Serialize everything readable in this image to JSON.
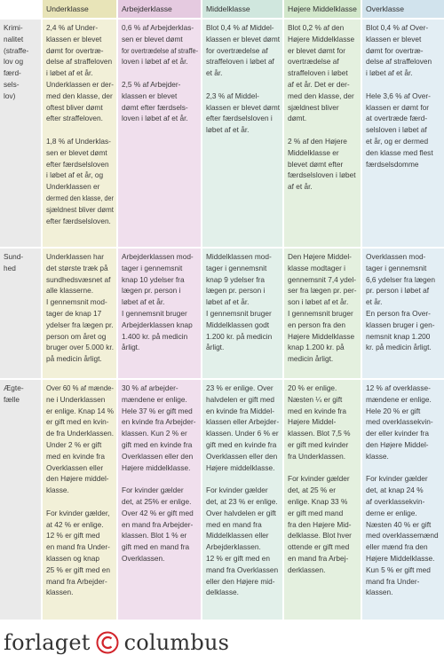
{
  "table": {
    "header": [
      "Underklasse",
      "Arbejderklasse",
      "Middelklasse",
      "Højere Middelklasse",
      "Overklasse"
    ],
    "rows": [
      {
        "label": [
          "Krimi-",
          "nalitet",
          "(straffe-",
          "lov og",
          "færd-",
          "sels-",
          "lov)"
        ],
        "cells": [
          [
            [
              "2,4 % af Under-",
              "klassen er blevet",
              "dømt for overtræ-",
              "delse af straffeloven",
              "i løbet af et år.",
              "Underklassen er der-",
              "med den klasse, der",
              "oftest bliver dømt",
              "efter straffeloven."
            ],
            [
              "1,8 % af Underklas-",
              "sen er blevet dømt",
              "efter færdselsloven",
              "i løbet af et år, og",
              "Underklassen er",
              "dermed den klasse, der",
              "sjældnest bliver dømt",
              "efter færdselsloven."
            ]
          ],
          [
            [
              "0,6 % af Arbejderklas-",
              "sen er blevet dømt",
              "for overtrædelse af straffe-",
              "loven i løbet af et år."
            ],
            [
              "2,5 % af Arbejder-",
              "klassen er blevet",
              "dømt efter færdsels-",
              "loven i løbet af et år."
            ]
          ],
          [
            [
              "Blot 0,4 % af Middel-",
              "klassen er blevet dømt",
              "for overtrædelse af",
              "straffeloven i løbet af",
              "et år."
            ],
            [
              "2,3 % af Middel-",
              "klassen er blevet dømt",
              "efter færdselsloven i",
              "løbet af et år."
            ]
          ],
          [
            [
              "Blot 0,2 % af den",
              "Højere Middelklasse",
              "er blevet dømt for",
              "overtrædelse af",
              "straffeloven i løbet",
              "af et år. Det er der-",
              "med den klasse, der",
              "sjældnest bliver",
              "dømt."
            ],
            [
              "2 % af den Højere",
              "Middelklasse er",
              "blevet dømt efter",
              "færdselsloven i løbet",
              "af et år."
            ]
          ],
          [
            [
              "Blot 0,4 % af Over-",
              "klassen er blevet",
              "dømt for overtræ-",
              "delse af straffeloven",
              "i løbet af et år."
            ],
            [
              "Hele 3,6 % af Over-",
              "klassen er dømt for",
              "at overtræde færd-",
              "selsloven i løbet af",
              "et år, og er dermed",
              "den klasse med flest",
              "færdselsdomme"
            ]
          ]
        ]
      },
      {
        "label": [
          "Sund-",
          "hed"
        ],
        "cells": [
          [
            [
              "Underklassen har",
              "det største træk på",
              "sundhedsvæsnet af",
              "alle klasserne.",
              "I gennemsnit mod-",
              "tager de knap 17",
              "ydelser fra lægen pr.",
              "person om året og",
              "bruger over 5.000 kr.",
              "på medicin årligt."
            ]
          ],
          [
            [
              "Arbejderklassen mod-",
              "tager i gennemsnit",
              "knap 10 ydelser fra",
              "lægen pr. person i",
              "løbet af et år.",
              "I gennemsnit bruger",
              "Arbejderklassen knap",
              "1.400 kr. på medicin",
              "årligt."
            ]
          ],
          [
            [
              "Middelklassen mod-",
              "tager i gennemsnit",
              "knap 9 ydelser fra",
              "lægen pr. person i",
              "løbet af et år.",
              "I gennemsnit bruger",
              "Middelklassen godt",
              "1.200 kr. på medicin",
              "årligt."
            ]
          ],
          [
            [
              "Den Højere Middel-",
              "klasse modtager i",
              "gennemsnit 7,4 ydel-",
              "ser fra lægen pr. per-",
              "son i løbet af et år.",
              "I gennemsnit bruger",
              "en person fra den",
              "Højere Middelklasse",
              "knap 1.200 kr. på",
              "medicin årligt."
            ]
          ],
          [
            [
              "Overklassen mod-",
              "tager i gennemsnit",
              "6,6 ydelser fra lægen",
              "pr. person i løbet af",
              "et år.",
              "En person fra Over-",
              "klassen bruger i gen-",
              "nemsnit knap 1.200",
              "kr. på medicin årligt."
            ]
          ]
        ]
      },
      {
        "label": [
          "Ægte-",
          "fælle"
        ],
        "cells": [
          [
            [
              "Over 60 % af mænde-",
              "ne i Underklassen",
              "er enlige. Knap 14 %",
              "er gift med en kvin-",
              "de fra Underklassen.",
              "Under 2 % er gift",
              "med en kvinde fra",
              "Overklassen eller",
              "den Højere middel-",
              "klasse."
            ],
            [
              "For kvinder gælder,",
              "at 42 % er enlige.",
              "12 % er gift med",
              "en mand fra Under-",
              "klassen og knap",
              "25 % er gift med en",
              "mand fra Arbejder-",
              "klassen."
            ]
          ],
          [
            [
              "30 % af arbejder-",
              "mændene er enlige.",
              "Hele 37 % er gift med",
              "en kvinde fra Arbejder-",
              "klassen. Kun 2 % er",
              "gift med en kvinde fra",
              "Overklassen eller den",
              "Højere middelklasse."
            ],
            [
              "For kvinder gælder",
              "det, at 25% er enlige.",
              "Over 42 % er gift med",
              "en mand fra Arbejder-",
              "klassen. Blot 1 % er",
              "gift med en mand fra",
              "Overklassen."
            ]
          ],
          [
            [
              "23 % er enlige. Over",
              "halvdelen er gift med",
              "en kvinde fra Middel-",
              "klassen eller Arbejder-",
              "klassen. Under 6 % er",
              "gift med en kvinde fra",
              "Overklassen eller den",
              "Højere middelklasse."
            ],
            [
              "For kvinder gælder",
              "det, at 23 % er enlige.",
              "Over halvdelen er gift",
              "med en mand fra",
              "Middelklassen eller",
              "Arbejderklassen.",
              "12 % er gift med en",
              "mand fra Overklassen",
              "eller den Højere mid-",
              "delklasse."
            ]
          ],
          [
            [
              "20 % er enlige.",
              "Næsten ¼ er gift",
              "med en kvinde fra",
              "Højere Middel-",
              "klassen. Blot 7,5 %",
              "er gift med kvinder",
              "fra Underklassen."
            ],
            [
              "For kvinder gælder",
              "det, at 25 % er",
              "enlige. Knap 33 %",
              "er gift med mand",
              "fra den Højere Mid-",
              "delklasse. Blot hver",
              "ottende er gift med",
              "en mand fra Arbej-",
              "derklassen."
            ]
          ],
          [
            [
              "12 % af overklasse-",
              "mændene er enlige.",
              "Hele 20 % er gift",
              "med overklassekvin-",
              "der eller kvinder fra",
              "den Højere Middel-",
              "klasse."
            ],
            [
              "For kvinder gælder",
              "det, at knap 24 %",
              "af overklassekvin-",
              "derne er enlige.",
              "Næsten 40 % er gift",
              "med overklassemænd",
              "eller mænd fra den",
              "Højere Middelklasse.",
              "Kun 5 % er gift med",
              "mand fra Under-",
              "klassen."
            ]
          ]
        ]
      }
    ]
  },
  "logo": {
    "left": "forlaget",
    "right": "columbus"
  }
}
